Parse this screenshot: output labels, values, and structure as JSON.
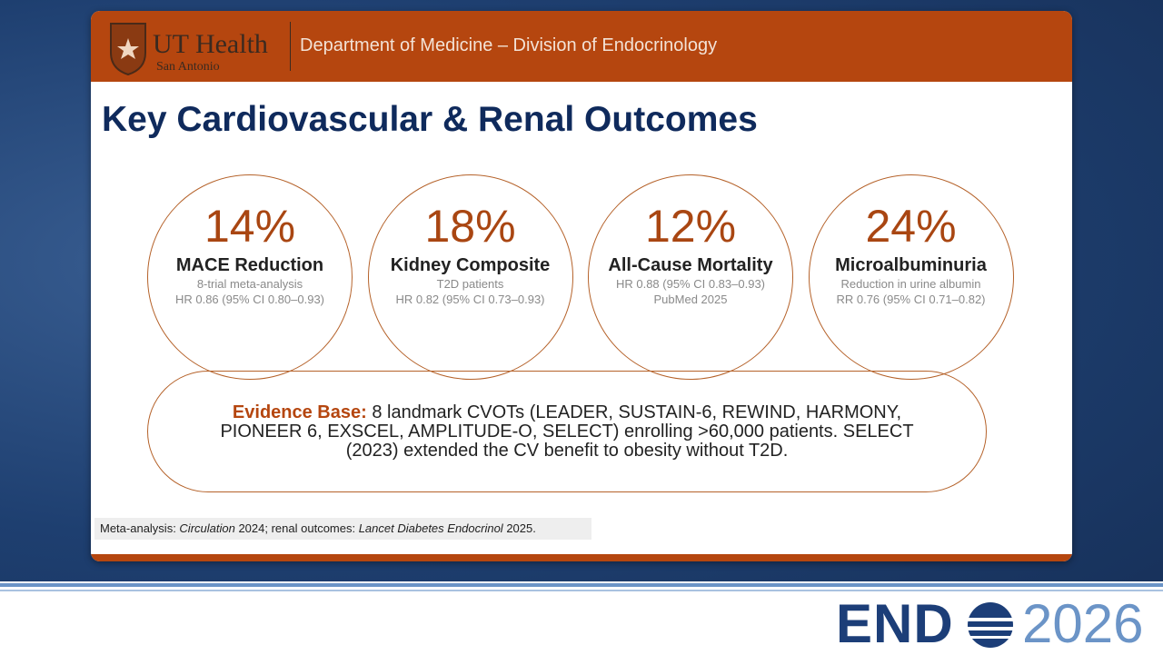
{
  "header": {
    "logo_name": "UT Health",
    "logo_sub": "San Antonio",
    "department": "Department of Medicine – Division of Endocrinology"
  },
  "title": "Key Cardiovascular & Renal Outcomes",
  "stats": [
    {
      "value": "14%",
      "label": "MACE Reduction",
      "lines": [
        "8-trial meta-analysis",
        "HR 0.86 (95% CI 0.80–0.93)"
      ]
    },
    {
      "value": "18%",
      "label": "Kidney Composite",
      "lines": [
        "T2D patients",
        "HR 0.82 (95% CI 0.73–0.93)"
      ]
    },
    {
      "value": "12%",
      "label": "All-Cause Mortality",
      "lines": [
        "HR 0.88 (95% CI 0.83–0.93)",
        "PubMed 2025"
      ]
    },
    {
      "value": "24%",
      "label": "Microalbuminuria",
      "lines": [
        "Reduction in urine albumin",
        "RR 0.76 (95% CI 0.71–0.82)"
      ]
    }
  ],
  "evidence": {
    "label": "Evidence Base:",
    "text": "8 landmark CVOTs (LEADER, SUSTAIN-6, REWIND, HARMONY, PIONEER 6, EXSCEL, AMPLITUDE-O, SELECT) enrolling >60,000 patients. SELECT (2023) extended the CV benefit to obesity without T2D."
  },
  "footnote": [
    {
      "text": "Meta-analysis: ",
      "italic": false
    },
    {
      "text": "Circulation",
      "italic": true
    },
    {
      "text": " 2024; renal outcomes: ",
      "italic": false
    },
    {
      "text": "Lancet Diabetes Endocrinol",
      "italic": true
    },
    {
      "text": " 2025.",
      "italic": false
    }
  ],
  "footer": {
    "logo_left": "END",
    "logo_right": "2026"
  }
}
